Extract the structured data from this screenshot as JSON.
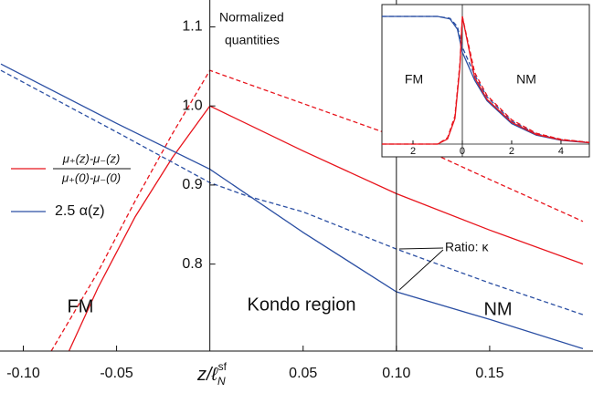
{
  "chart_data": [
    {
      "type": "line",
      "x_label": {
        "main": "z/ℓ",
        "sub": "N",
        "sup": "sf"
      },
      "y_label": [
        "Normalized",
        "quantities"
      ],
      "annotations": {
        "fm": "FM",
        "kondo": "Kondo region",
        "nm": "NM",
        "ratio": "Ratio: κ"
      },
      "legend": [
        {
          "numerator": "μ₊(z)-μ₋(z)",
          "denominator": "μ₊(0)-μ₋(0)"
        },
        {
          "label": "2.5 α(z)"
        }
      ],
      "xlim": [
        -0.112,
        0.2
      ],
      "ylim": [
        0.69,
        1.134
      ],
      "xticks": [
        -0.1,
        -0.05,
        0.05,
        0.1,
        0.15
      ],
      "xtick_labels": [
        "-0.10",
        "-0.05",
        "0.05",
        "0.10",
        "0.15"
      ],
      "yticks": [
        0.8,
        0.9,
        1.0,
        1.1
      ],
      "ytick_labels": [
        "0.8",
        "0.9",
        "1.0",
        "1.1"
      ],
      "vline": 0.1,
      "series": [
        {
          "color": "#e8141c",
          "style": "solid",
          "legend": 0,
          "x": [
            -0.0755,
            -0.06,
            -0.04,
            -0.02,
            0,
            0.05,
            0.1,
            0.15,
            0.2
          ],
          "values": [
            0.69,
            0.77,
            0.86,
            0.935,
            1.0,
            0.943,
            0.889,
            0.843,
            0.8
          ]
        },
        {
          "color": "#e8141c",
          "style": "dashed",
          "x": [
            -0.085,
            -0.06,
            -0.04,
            -0.02,
            0,
            0.05,
            0.1,
            0.15,
            0.2
          ],
          "values": [
            0.69,
            0.79,
            0.88,
            0.965,
            1.045,
            1.003,
            0.961,
            0.907,
            0.854
          ]
        },
        {
          "color": "#2b4fa3",
          "style": "solid",
          "legend": 1,
          "x": [
            -0.112,
            -0.05,
            0,
            0.05,
            0.1,
            0.15,
            0.2
          ],
          "values": [
            1.053,
            0.978,
            0.92,
            0.84,
            0.765,
            0.73,
            0.693
          ]
        },
        {
          "color": "#2b4fa3",
          "style": "dashed",
          "x": [
            -0.112,
            -0.05,
            0,
            0.02,
            0.05,
            0.1,
            0.15,
            0.2
          ],
          "values": [
            1.045,
            0.967,
            0.903,
            0.886,
            0.866,
            0.819,
            0.776,
            0.736
          ]
        }
      ]
    },
    {
      "type": "line",
      "annotations": {
        "fm": "FM",
        "nm": "NM"
      },
      "xlim": [
        -3.26,
        5.15
      ],
      "ylim": [
        -0.1,
        1.093
      ],
      "xticks": [
        {
          "value": -2,
          "label": "2"
        },
        0,
        2,
        4
      ],
      "series": [
        {
          "color": "#2b4fa3",
          "style": "solid",
          "x": [
            -3.26,
            -1,
            -0.5,
            -0.2,
            0,
            0.5,
            1,
            2,
            3,
            4,
            5.15
          ],
          "values": [
            1.0,
            1.0,
            0.98,
            0.9,
            0.72,
            0.5,
            0.34,
            0.16,
            0.07,
            0.03,
            0.01
          ]
        },
        {
          "color": "#2b4fa3",
          "style": "dashed",
          "x": [
            -3.26,
            -1,
            -0.5,
            -0.2,
            0,
            0.5,
            1,
            2,
            3,
            4,
            5.15
          ],
          "values": [
            1.0,
            1.0,
            0.985,
            0.92,
            0.76,
            0.54,
            0.37,
            0.18,
            0.08,
            0.035,
            0.012
          ]
        },
        {
          "color": "#e8141c",
          "style": "solid",
          "x": [
            -3.26,
            -1,
            -0.6,
            -0.3,
            -0.1,
            0,
            0.5,
            1,
            2,
            3,
            4,
            5.15
          ],
          "values": [
            0,
            0,
            0.04,
            0.2,
            0.6,
            1.0,
            0.52,
            0.35,
            0.17,
            0.075,
            0.032,
            0.011
          ]
        },
        {
          "color": "#e8141c",
          "style": "dashed",
          "x": [
            -3.26,
            -1,
            -0.6,
            -0.3,
            -0.1,
            0,
            0.5,
            1,
            2,
            3,
            4,
            5.15
          ],
          "values": [
            0,
            0,
            0.05,
            0.22,
            0.63,
            1.0,
            0.56,
            0.38,
            0.19,
            0.085,
            0.037,
            0.013
          ]
        }
      ]
    }
  ]
}
